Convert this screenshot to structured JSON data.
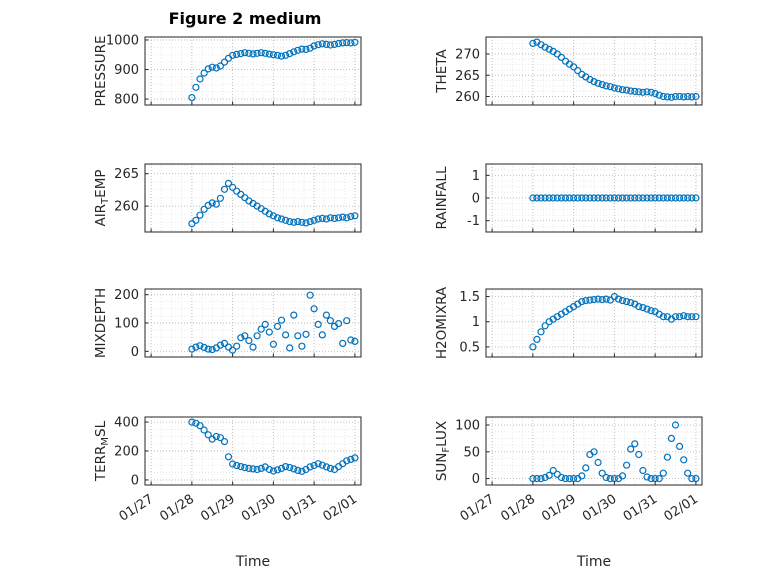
{
  "title": "Figure 2 medium",
  "xlabel": "Time",
  "marker_color": "#0072BD",
  "axis_color": "#262626",
  "grid_color": "#b8b8b8",
  "minor_grid_color": "#e4e4e4",
  "chart_data": [
    {
      "type": "scatter",
      "ylabel": "PRESSURE",
      "ylim": [
        780,
        1010
      ],
      "yticks": [
        800,
        900,
        1000
      ],
      "xlim": [
        -0.15,
        5.15
      ],
      "xticks": [
        0,
        1,
        2,
        3,
        4,
        5
      ],
      "xticklabels": [
        "01/27",
        "01/28",
        "01/29",
        "01/30",
        "01/31",
        "02/01"
      ],
      "x": [
        1,
        1.1,
        1.2,
        1.3,
        1.4,
        1.5,
        1.6,
        1.7,
        1.8,
        1.9,
        2,
        2.1,
        2.2,
        2.3,
        2.4,
        2.5,
        2.6,
        2.7,
        2.8,
        2.9,
        3,
        3.1,
        3.2,
        3.3,
        3.4,
        3.5,
        3.6,
        3.7,
        3.8,
        3.9,
        4,
        4.1,
        4.2,
        4.3,
        4.4,
        4.5,
        4.6,
        4.7,
        4.8,
        4.9,
        5
      ],
      "y": [
        805,
        840,
        868,
        888,
        902,
        908,
        905,
        912,
        925,
        938,
        948,
        951,
        954,
        957,
        955,
        953,
        955,
        957,
        955,
        952,
        950,
        948,
        945,
        948,
        954,
        960,
        965,
        969,
        968,
        972,
        980,
        984,
        987,
        985,
        983,
        985,
        988,
        990,
        991,
        990,
        992
      ]
    },
    {
      "type": "scatter",
      "ylabel": "THETA",
      "ylim": [
        258,
        274
      ],
      "yticks": [
        260,
        265,
        270
      ],
      "xlim": [
        -0.15,
        5.15
      ],
      "xticks": [
        0,
        1,
        2,
        3,
        4,
        5
      ],
      "xticklabels": [
        "01/27",
        "01/28",
        "01/29",
        "01/30",
        "01/31",
        "02/01"
      ],
      "x": [
        1,
        1.1,
        1.2,
        1.3,
        1.4,
        1.5,
        1.6,
        1.7,
        1.8,
        1.9,
        2,
        2.1,
        2.2,
        2.3,
        2.4,
        2.5,
        2.6,
        2.7,
        2.8,
        2.9,
        3,
        3.1,
        3.2,
        3.3,
        3.4,
        3.5,
        3.6,
        3.7,
        3.8,
        3.9,
        4,
        4.1,
        4.2,
        4.3,
        4.4,
        4.5,
        4.6,
        4.7,
        4.8,
        4.9,
        5
      ],
      "y": [
        272.5,
        272.8,
        272.2,
        271.6,
        271.1,
        270.6,
        270,
        269.2,
        268.3,
        267.6,
        267,
        266.1,
        265.2,
        264.6,
        264,
        263.5,
        263.1,
        262.8,
        262.5,
        262.3,
        262,
        261.8,
        261.6,
        261.5,
        261.3,
        261.2,
        261.1,
        261,
        261.1,
        261,
        260.7,
        260.3,
        260,
        259.9,
        259.8,
        260,
        260,
        259.9,
        260,
        259.9,
        260
      ]
    },
    {
      "type": "scatter",
      "ylabel": "AIR_{T}EMP",
      "ylim": [
        256,
        266.5
      ],
      "yticks": [
        260,
        265
      ],
      "xlim": [
        -0.15,
        5.15
      ],
      "xticks": [
        0,
        1,
        2,
        3,
        4,
        5
      ],
      "xticklabels": [
        "01/27",
        "01/28",
        "01/29",
        "01/30",
        "01/31",
        "02/01"
      ],
      "x": [
        1,
        1.1,
        1.2,
        1.3,
        1.4,
        1.5,
        1.6,
        1.7,
        1.8,
        1.9,
        2,
        2.1,
        2.2,
        2.3,
        2.4,
        2.5,
        2.6,
        2.7,
        2.8,
        2.9,
        3,
        3.1,
        3.2,
        3.3,
        3.4,
        3.5,
        3.6,
        3.7,
        3.8,
        3.9,
        4,
        4.1,
        4.2,
        4.3,
        4.4,
        4.5,
        4.6,
        4.7,
        4.8,
        4.9,
        5
      ],
      "y": [
        257.3,
        257.8,
        258.6,
        259.5,
        260.1,
        260.5,
        260.3,
        261.2,
        262.6,
        263.5,
        262.9,
        262.3,
        261.8,
        261.3,
        260.8,
        260.4,
        260,
        259.6,
        259.2,
        258.8,
        258.5,
        258.2,
        258,
        257.8,
        257.6,
        257.5,
        257.6,
        257.5,
        257.4,
        257.6,
        257.8,
        258,
        258.1,
        258,
        258.2,
        258.1,
        258.2,
        258.3,
        258.2,
        258.4,
        258.5
      ]
    },
    {
      "type": "scatter",
      "ylabel": "RAINFALL",
      "ylim": [
        -1.5,
        1.5
      ],
      "yticks": [
        -1,
        0,
        1
      ],
      "xlim": [
        -0.15,
        5.15
      ],
      "xticks": [
        0,
        1,
        2,
        3,
        4,
        5
      ],
      "xticklabels": [
        "01/27",
        "01/28",
        "01/29",
        "01/30",
        "01/31",
        "02/01"
      ],
      "x": [
        1,
        1.1,
        1.2,
        1.3,
        1.4,
        1.5,
        1.6,
        1.7,
        1.8,
        1.9,
        2,
        2.1,
        2.2,
        2.3,
        2.4,
        2.5,
        2.6,
        2.7,
        2.8,
        2.9,
        3,
        3.1,
        3.2,
        3.3,
        3.4,
        3.5,
        3.6,
        3.7,
        3.8,
        3.9,
        4,
        4.1,
        4.2,
        4.3,
        4.4,
        4.5,
        4.6,
        4.7,
        4.8,
        4.9,
        5
      ],
      "y": [
        0,
        0,
        0,
        0,
        0,
        0,
        0,
        0,
        0,
        0,
        0,
        0,
        0,
        0,
        0,
        0,
        0,
        0,
        0,
        0,
        0,
        0,
        0,
        0,
        0,
        0,
        0,
        0,
        0,
        0,
        0,
        0,
        0,
        0,
        0,
        0,
        0,
        0,
        0,
        0,
        0
      ]
    },
    {
      "type": "scatter",
      "ylabel": "MIXDEPTH",
      "ylim": [
        -20,
        220
      ],
      "yticks": [
        0,
        100,
        200
      ],
      "xlim": [
        -0.15,
        5.15
      ],
      "xticks": [
        0,
        1,
        2,
        3,
        4,
        5
      ],
      "xticklabels": [
        "01/27",
        "01/28",
        "01/29",
        "01/30",
        "01/31",
        "02/01"
      ],
      "x": [
        1,
        1.1,
        1.2,
        1.3,
        1.4,
        1.5,
        1.6,
        1.7,
        1.8,
        1.9,
        2,
        2.1,
        2.2,
        2.3,
        2.4,
        2.5,
        2.6,
        2.7,
        2.8,
        2.9,
        3,
        3.1,
        3.2,
        3.3,
        3.4,
        3.5,
        3.6,
        3.7,
        3.8,
        3.9,
        4,
        4.1,
        4.2,
        4.3,
        4.4,
        4.5,
        4.6,
        4.7,
        4.8,
        4.9,
        5
      ],
      "y": [
        8,
        15,
        20,
        14,
        8,
        6,
        12,
        22,
        28,
        15,
        4,
        18,
        48,
        55,
        38,
        15,
        55,
        78,
        95,
        68,
        25,
        88,
        110,
        58,
        12,
        128,
        55,
        18,
        60,
        198,
        150,
        95,
        58,
        128,
        108,
        88,
        98,
        28,
        108,
        40,
        35
      ]
    },
    {
      "type": "scatter",
      "ylabel": "H2OMIXRA",
      "ylim": [
        0.3,
        1.65
      ],
      "yticks": [
        0.5,
        1,
        1.5
      ],
      "xlim": [
        -0.15,
        5.15
      ],
      "xticks": [
        0,
        1,
        2,
        3,
        4,
        5
      ],
      "xticklabels": [
        "01/27",
        "01/28",
        "01/29",
        "01/30",
        "01/31",
        "02/01"
      ],
      "x": [
        1,
        1.1,
        1.2,
        1.3,
        1.4,
        1.5,
        1.6,
        1.7,
        1.8,
        1.9,
        2,
        2.1,
        2.2,
        2.3,
        2.4,
        2.5,
        2.6,
        2.7,
        2.8,
        2.9,
        3,
        3.1,
        3.2,
        3.3,
        3.4,
        3.5,
        3.6,
        3.7,
        3.8,
        3.9,
        4,
        4.1,
        4.2,
        4.3,
        4.4,
        4.5,
        4.6,
        4.7,
        4.8,
        4.9,
        5
      ],
      "y": [
        0.5,
        0.65,
        0.8,
        0.92,
        1,
        1.05,
        1.1,
        1.15,
        1.2,
        1.25,
        1.3,
        1.35,
        1.4,
        1.42,
        1.43,
        1.44,
        1.45,
        1.44,
        1.45,
        1.43,
        1.5,
        1.45,
        1.42,
        1.4,
        1.38,
        1.35,
        1.3,
        1.28,
        1.25,
        1.22,
        1.2,
        1.15,
        1.1,
        1.1,
        1.05,
        1.1,
        1.1,
        1.12,
        1.1,
        1.1,
        1.1
      ]
    },
    {
      "type": "scatter",
      "ylabel": "TERR_{M}SL",
      "ylim": [
        -35,
        435
      ],
      "yticks": [
        0,
        200,
        400
      ],
      "xlim": [
        -0.15,
        5.15
      ],
      "xticks": [
        0,
        1,
        2,
        3,
        4,
        5
      ],
      "xticklabels": [
        "01/27",
        "01/28",
        "01/29",
        "01/30",
        "01/31",
        "02/01"
      ],
      "x": [
        1,
        1.1,
        1.2,
        1.3,
        1.4,
        1.5,
        1.6,
        1.7,
        1.8,
        1.9,
        2,
        2.1,
        2.2,
        2.3,
        2.4,
        2.5,
        2.6,
        2.7,
        2.8,
        2.9,
        3,
        3.1,
        3.2,
        3.3,
        3.4,
        3.5,
        3.6,
        3.7,
        3.8,
        3.9,
        4,
        4.1,
        4.2,
        4.3,
        4.4,
        4.5,
        4.6,
        4.7,
        4.8,
        4.9,
        5
      ],
      "y": [
        400,
        392,
        375,
        345,
        312,
        282,
        300,
        292,
        265,
        160,
        110,
        100,
        92,
        85,
        80,
        76,
        72,
        80,
        90,
        72,
        62,
        70,
        80,
        92,
        86,
        76,
        66,
        60,
        72,
        90,
        100,
        112,
        102,
        90,
        80,
        72,
        92,
        112,
        132,
        142,
        152
      ]
    },
    {
      "type": "scatter",
      "ylabel": "SUN_{F}LUX",
      "ylim": [
        -12,
        115
      ],
      "yticks": [
        0,
        50,
        100
      ],
      "xlim": [
        -0.15,
        5.15
      ],
      "xticks": [
        0,
        1,
        2,
        3,
        4,
        5
      ],
      "xticklabels": [
        "01/27",
        "01/28",
        "01/29",
        "01/30",
        "01/31",
        "02/01"
      ],
      "x": [
        1,
        1.1,
        1.2,
        1.3,
        1.4,
        1.5,
        1.6,
        1.7,
        1.8,
        1.9,
        2,
        2.1,
        2.2,
        2.3,
        2.4,
        2.5,
        2.6,
        2.7,
        2.8,
        2.9,
        3,
        3.1,
        3.2,
        3.3,
        3.4,
        3.5,
        3.6,
        3.7,
        3.8,
        3.9,
        4,
        4.1,
        4.2,
        4.3,
        4.4,
        4.5,
        4.6,
        4.7,
        4.8,
        4.9,
        5
      ],
      "y": [
        0,
        0,
        0,
        2,
        6,
        15,
        8,
        2,
        0,
        0,
        0,
        0,
        5,
        20,
        45,
        50,
        30,
        10,
        2,
        0,
        0,
        0,
        5,
        25,
        55,
        65,
        45,
        15,
        3,
        0,
        0,
        0,
        10,
        40,
        75,
        100,
        60,
        35,
        10,
        0,
        0
      ]
    }
  ]
}
